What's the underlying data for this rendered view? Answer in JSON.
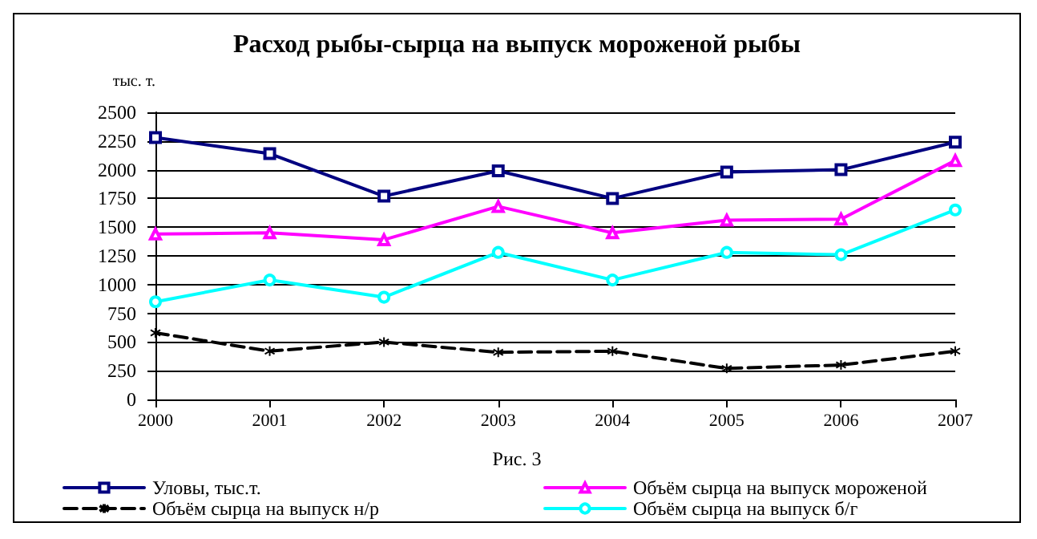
{
  "chart_data": {
    "type": "line",
    "title": "Расход рыбы-сырца на выпуск мороженой рыбы",
    "ylabel": "тыс. т.",
    "annotations": [
      "Рис. 3"
    ],
    "categories": [
      "2000",
      "2001",
      "2002",
      "2003",
      "2004",
      "2005",
      "2006",
      "2007"
    ],
    "series": [
      {
        "name": "Уловы, тыс.т.",
        "color": "#000080",
        "marker": "square",
        "line_style": "solid",
        "values": [
          2280,
          2140,
          1770,
          1990,
          1750,
          1980,
          2000,
          2240
        ]
      },
      {
        "name": "Объём сырца на выпуск мороженой",
        "color": "#ff00ff",
        "marker": "triangle",
        "line_style": "solid",
        "values": [
          1440,
          1450,
          1390,
          1680,
          1450,
          1560,
          1570,
          2080
        ]
      },
      {
        "name": "Объём сырца на выпуск н/р",
        "color": "#000000",
        "marker": "cross",
        "line_style": "dashed",
        "values": [
          580,
          420,
          500,
          410,
          420,
          270,
          300,
          420
        ]
      },
      {
        "name": "Объём сырца на выпуск б/г",
        "color": "#00ffff",
        "marker": "circle",
        "line_style": "solid",
        "values": [
          850,
          1040,
          890,
          1280,
          1040,
          1280,
          1260,
          1650
        ]
      }
    ],
    "ylim": [
      0,
      2500
    ],
    "yticks": [
      0,
      250,
      500,
      750,
      1000,
      1250,
      1500,
      1750,
      2000,
      2250,
      2500
    ],
    "grid": "y",
    "legend": "bottom"
  }
}
